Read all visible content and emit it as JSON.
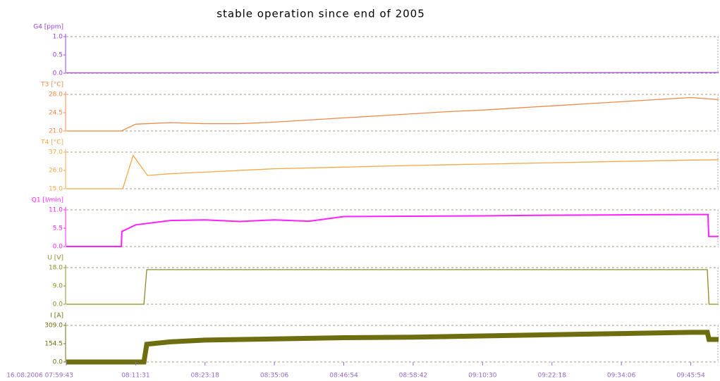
{
  "chart_data": [
    {
      "type": "line",
      "title": "stable operation since end of 2005",
      "ylabel": "G4 [ppm]",
      "color": "#9a40d8",
      "x": [
        "07:59:43",
        "08:35:07",
        "09:10:31",
        "09:45:55",
        "09:50:38"
      ],
      "series": [
        {
          "name": "G4",
          "color": "#9a40d8",
          "values": [
            0.01,
            0.01,
            0.01,
            0.02,
            0.02
          ]
        }
      ],
      "xlim": [
        "07:59:43",
        "09:50:38"
      ],
      "ylim": [
        0,
        1
      ],
      "yticks": [
        {
          "value": 0,
          "label": "0.0"
        },
        0.5,
        {
          "value": 1,
          "label": "1.0"
        }
      ],
      "grid": true
    },
    {
      "type": "line",
      "ylabel": "T3 [°C]",
      "color": "#f08848",
      "x": [
        "07:59:43",
        "08:05:37",
        "08:09:05",
        "08:11:31",
        "08:17:25",
        "08:23:19",
        "08:29:13",
        "08:35:07",
        "08:41:01",
        "08:46:55",
        "08:52:49",
        "08:58:43",
        "09:04:37",
        "09:10:31",
        "09:16:25",
        "09:22:19",
        "09:28:13",
        "09:34:07",
        "09:40:01",
        "09:45:55",
        "09:50:38"
      ],
      "series": [
        {
          "name": "T3",
          "color": "#f08848",
          "values": [
            21.0,
            21.0,
            21.0,
            22.3,
            22.6,
            22.4,
            22.4,
            22.7,
            23.1,
            23.5,
            23.9,
            24.3,
            24.7,
            25.0,
            25.4,
            25.8,
            26.2,
            26.6,
            27.0,
            27.4,
            27.0
          ]
        }
      ],
      "xlim": [
        "07:59:43",
        "09:50:38"
      ],
      "ylim": [
        21,
        28
      ],
      "yticks": [
        {
          "value": 21,
          "label": "21.0"
        },
        24.5,
        {
          "value": 28,
          "label": "28.0"
        }
      ],
      "grid": true
    },
    {
      "type": "line",
      "ylabel": "T4 [°C]",
      "color": "#f0a848",
      "x": [
        "07:59:43",
        "08:09:19",
        "08:11:05",
        "08:13:31",
        "08:17:25",
        "08:23:19",
        "08:35:07",
        "08:46:55",
        "08:58:43",
        "09:10:31",
        "09:22:19",
        "09:34:07",
        "09:45:55",
        "09:50:38"
      ],
      "series": [
        {
          "name": "T4",
          "color": "#f0a848",
          "values": [
            15,
            15,
            35,
            23,
            24,
            25,
            27,
            28,
            29,
            29.8,
            30.6,
            31.4,
            32.2,
            32.4
          ]
        }
      ],
      "xlim": [
        "07:59:43",
        "09:50:38"
      ],
      "ylim": [
        15,
        37
      ],
      "yticks": [
        {
          "value": 15,
          "label": "15.0"
        },
        {
          "value": 26,
          "label": "26.0"
        },
        {
          "value": 37,
          "label": "37.0"
        }
      ],
      "grid": true
    },
    {
      "type": "line",
      "ylabel": "Q1 [l/min]",
      "color": "#ff20ff",
      "x": [
        "07:59:43",
        "08:09:05",
        "08:09:10",
        "08:11:31",
        "08:17:25",
        "08:23:19",
        "08:29:13",
        "08:35:07",
        "08:41:01",
        "08:46:55",
        "08:58:43",
        "09:10:31",
        "09:22:19",
        "09:34:07",
        "09:45:55",
        "09:48:50",
        "09:48:57",
        "09:50:38"
      ],
      "series": [
        {
          "name": "Q1",
          "color": "#ff20ff",
          "values": [
            0,
            0,
            4.5,
            6.5,
            7.8,
            8.0,
            7.5,
            8.0,
            7.6,
            9.0,
            9.1,
            9.2,
            9.4,
            9.5,
            9.6,
            9.6,
            3.0,
            3.0
          ]
        }
      ],
      "xlim": [
        "07:59:43",
        "09:50:38"
      ],
      "ylim": [
        0,
        11
      ],
      "yticks": [
        {
          "value": 0,
          "label": "0.0"
        },
        5.5,
        {
          "value": 11,
          "label": "11.0"
        }
      ],
      "grid": true
    },
    {
      "type": "line",
      "ylabel": "U [V]",
      "color": "#8c8c28",
      "x": [
        "07:59:43",
        "08:12:55",
        "08:13:24",
        "09:48:43",
        "09:49:00",
        "09:50:38"
      ],
      "series": [
        {
          "name": "U",
          "color": "#8c8c28",
          "values": [
            0,
            0,
            17,
            17,
            0,
            0
          ]
        }
      ],
      "xlim": [
        "07:59:43",
        "09:50:38"
      ],
      "ylim": [
        0,
        18
      ],
      "yticks": [
        {
          "value": 0,
          "label": "0.0"
        },
        {
          "value": 9,
          "label": "9.0"
        },
        {
          "value": 18,
          "label": "18.0"
        }
      ],
      "grid": true
    },
    {
      "type": "line",
      "ylabel": "I [A]",
      "color": "#6e6e10",
      "x": [
        "07:59:43",
        "08:12:55",
        "08:13:24",
        "08:17:25",
        "08:23:19",
        "08:35:07",
        "08:46:55",
        "08:58:43",
        "09:10:31",
        "09:22:19",
        "09:34:07",
        "09:45:55",
        "09:48:43",
        "09:49:00",
        "09:50:38"
      ],
      "series": [
        {
          "name": "I",
          "color": "#6e6e10",
          "values": [
            0,
            0,
            150,
            170,
            185,
            195,
            205,
            210,
            220,
            230,
            240,
            250,
            250,
            190,
            190
          ]
        }
      ],
      "xlim": [
        "07:59:43",
        "09:50:38"
      ],
      "ylim": [
        0,
        309
      ],
      "yticks": [
        {
          "value": 0,
          "label": "0.0"
        },
        154.5,
        {
          "value": 309,
          "label": "309.0"
        }
      ],
      "grid": true,
      "xticks": [
        {
          "value": "07:59:43",
          "label": "16.08.2006 07:59:43"
        },
        "08:11:31",
        "08:23:18",
        "08:35:06",
        "08:46:54",
        "08:58:42",
        "09:10:30",
        "09:22:18",
        "09:34:06",
        "09:45:54"
      ]
    }
  ]
}
